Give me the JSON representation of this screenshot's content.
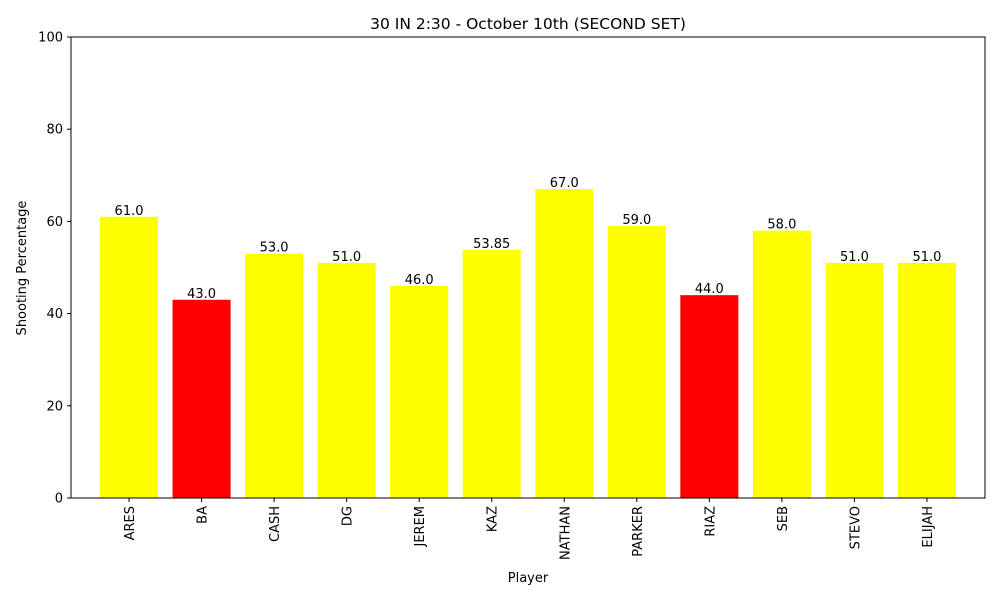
{
  "chart_data": {
    "type": "bar",
    "title": "30 IN 2:30 - October 10th (SECOND SET)",
    "xlabel": "Player",
    "ylabel": "Shooting Percentage",
    "ylim": [
      0,
      100
    ],
    "yticks": [
      0,
      20,
      40,
      60,
      80,
      100
    ],
    "categories": [
      "ARES",
      "BA",
      "CASH",
      "DG",
      "JEREM",
      "KAZ",
      "NATHAN",
      "PARKER",
      "RIAZ",
      "SEB",
      "STEVO",
      "ELIJAH"
    ],
    "values": [
      61.0,
      43.0,
      53.0,
      51.0,
      46.0,
      53.85,
      67.0,
      59.0,
      44.0,
      58.0,
      51.0,
      51.0
    ],
    "value_labels": [
      "61.0",
      "43.0",
      "53.0",
      "51.0",
      "46.0",
      "53.85",
      "67.0",
      "59.0",
      "44.0",
      "58.0",
      "51.0",
      "51.0"
    ],
    "bar_colors": [
      "#ffff00",
      "#ff0000",
      "#ffff00",
      "#ffff00",
      "#ffff00",
      "#ffff00",
      "#ffff00",
      "#ffff00",
      "#ff0000",
      "#ffff00",
      "#ffff00",
      "#ffff00"
    ],
    "grid": false,
    "legend": "none"
  }
}
